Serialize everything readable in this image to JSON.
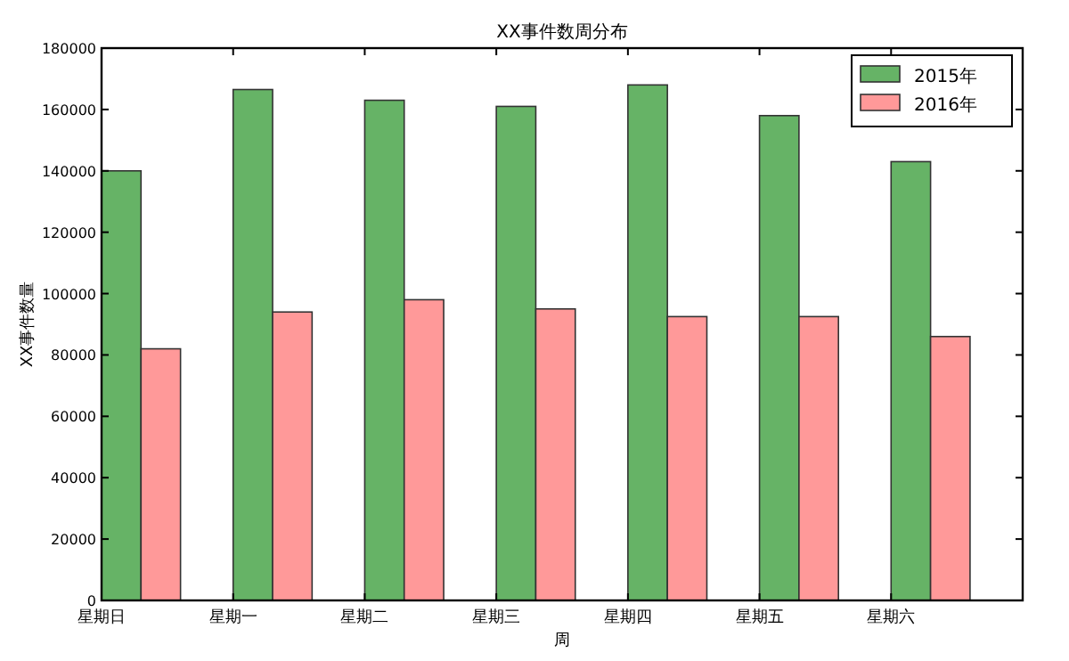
{
  "chart_data": {
    "type": "bar",
    "title": "XX事件数周分布",
    "xlabel": "周",
    "ylabel": "XX事件数量",
    "categories": [
      "星期日",
      "星期一",
      "星期二",
      "星期三",
      "星期四",
      "星期五",
      "星期六"
    ],
    "series": [
      {
        "name": "2015年",
        "color": "#66b366",
        "values": [
          140000,
          166500,
          163000,
          161000,
          168000,
          158000,
          143000
        ]
      },
      {
        "name": "2016年",
        "color": "#ff9999",
        "values": [
          82000,
          94000,
          98000,
          95000,
          92500,
          92500,
          86000
        ]
      }
    ],
    "ylim": [
      0,
      180000
    ],
    "yticks": [
      0,
      20000,
      40000,
      60000,
      80000,
      100000,
      120000,
      140000,
      160000,
      180000
    ],
    "grid": false,
    "legend": "top right"
  }
}
